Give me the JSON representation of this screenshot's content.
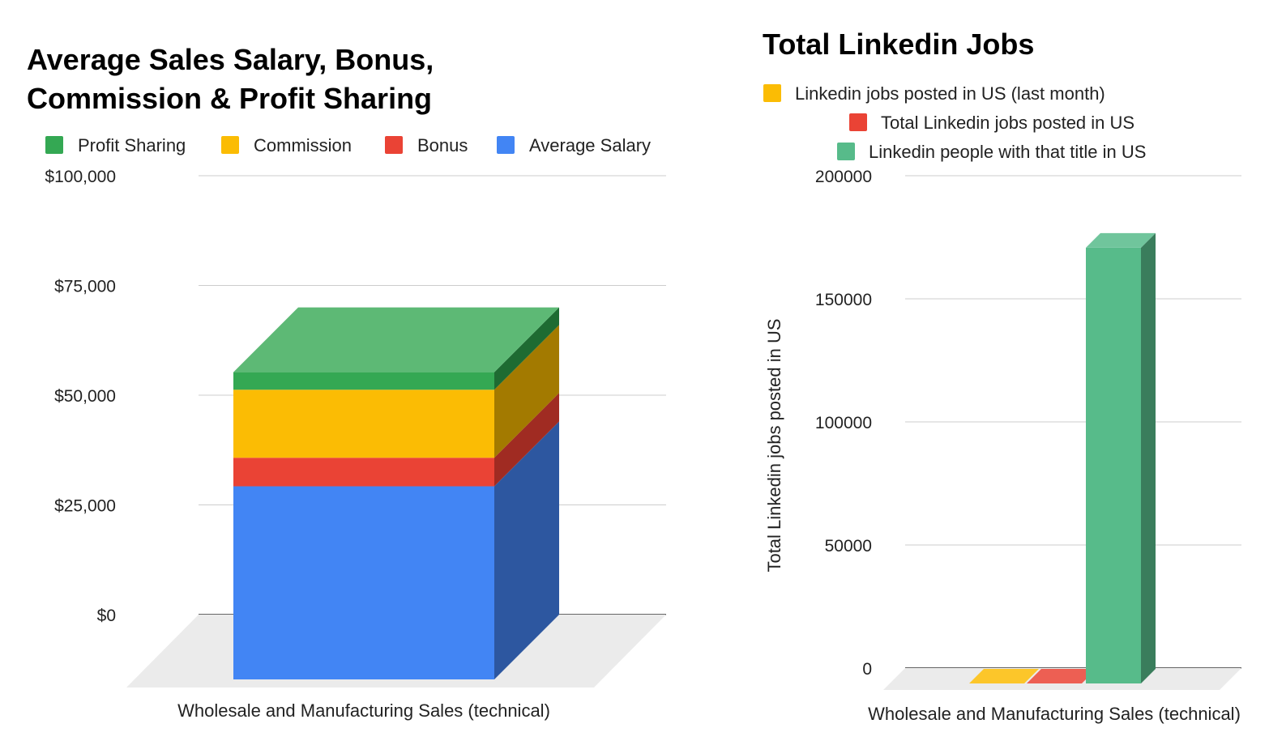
{
  "chart_data": [
    {
      "type": "bar",
      "stacked": true,
      "three_d": true,
      "title_lines": [
        "Average Sales Salary, Bonus,",
        "Commission & Profit Sharing"
      ],
      "categories": [
        "Wholesale and Manufacturing Sales (technical)"
      ],
      "series": [
        {
          "name": "Average Salary",
          "values": [
            44000
          ],
          "color": "#4285f4",
          "side_color": "#2d57a0"
        },
        {
          "name": "Bonus",
          "values": [
            6500
          ],
          "color": "#ea4335",
          "side_color": "#a02b22"
        },
        {
          "name": "Commission",
          "values": [
            15500
          ],
          "color": "#fbbc04",
          "side_color": "#a37a00"
        },
        {
          "name": "Profit Sharing",
          "values": [
            4000
          ],
          "color": "#34a853",
          "side_color": "#1e6b32"
        }
      ],
      "legend_order": [
        "Profit Sharing",
        "Commission",
        "Bonus",
        "Average Salary"
      ],
      "legend_position": "top",
      "ylim": [
        0,
        100000
      ],
      "yticks": [
        0,
        25000,
        50000,
        75000,
        100000
      ],
      "ytick_labels": [
        "$0",
        "$25,000",
        "$50,000",
        "$75,000",
        "$100,000"
      ],
      "xlabel": "",
      "ylabel": "",
      "grid": true
    },
    {
      "type": "bar",
      "three_d": true,
      "title": "Total Linkedin Jobs",
      "categories": [
        "Wholesale and Manufacturing Sales (technical)"
      ],
      "series": [
        {
          "name": "Linkedin jobs posted in US (last month)",
          "values": [
            0
          ],
          "color": "#fbbc04",
          "side_color": "#b88a00"
        },
        {
          "name": "Total Linkedin jobs posted in US",
          "values": [
            0
          ],
          "color": "#ea4335",
          "side_color": "#a02b22"
        },
        {
          "name": "Linkedin people with that title in US",
          "values": [
            177000
          ],
          "color": "#57bb8a",
          "side_color": "#3a7d5c"
        }
      ],
      "legend_position": "top",
      "ylim": [
        0,
        200000
      ],
      "yticks": [
        0,
        50000,
        100000,
        150000,
        200000
      ],
      "ytick_labels": [
        "0",
        "50000",
        "100000",
        "150000",
        "200000"
      ],
      "xlabel": "",
      "ylabel": "Total Linkedin jobs posted in US",
      "grid": true
    }
  ]
}
